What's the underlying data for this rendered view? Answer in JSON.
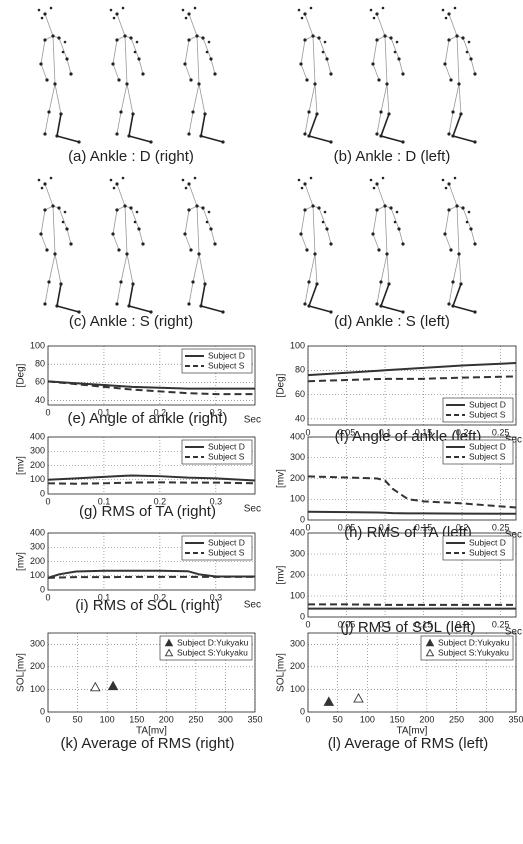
{
  "panels": [
    {
      "caption": "(a) Ankle : D (right)"
    },
    {
      "caption": "(b) Ankle : D (left)"
    },
    {
      "caption": "(c) Ankle : S (right)"
    },
    {
      "caption": "(d) Ankle : S (left)"
    }
  ],
  "chart_data": [
    {
      "type": "line",
      "title": "(e) Angle of ankle (right)",
      "xlabel": "Sec",
      "ylabel": "[Deg]",
      "xlim": [
        0,
        0.37
      ],
      "xticks": [
        0,
        0.1,
        0.2,
        0.3
      ],
      "ylim": [
        35,
        100
      ],
      "yticks": [
        40,
        60,
        80,
        100
      ],
      "grid": true,
      "legend": "upper right",
      "x": [
        0,
        0.05,
        0.1,
        0.15,
        0.2,
        0.25,
        0.3,
        0.37
      ],
      "series": [
        {
          "name": "Subject D",
          "color": "#333333",
          "dash": "solid",
          "values": [
            61,
            59,
            57,
            55,
            54,
            53,
            53,
            53
          ]
        },
        {
          "name": "Subject S",
          "color": "#333333",
          "dash": "dashed",
          "values": [
            61,
            58,
            55,
            52,
            50,
            48,
            47,
            47
          ]
        }
      ]
    },
    {
      "type": "line",
      "title": "(f) Angle of ankle (left)",
      "xlabel": "Sec",
      "ylabel": "[Deg]",
      "xlim": [
        0,
        0.27
      ],
      "xticks": [
        0,
        0.05,
        0.1,
        0.15,
        0.2,
        0.25
      ],
      "ylim": [
        35,
        100
      ],
      "yticks": [
        40,
        60,
        80,
        100
      ],
      "grid": true,
      "legend": "lower right",
      "x": [
        0,
        0.05,
        0.1,
        0.15,
        0.2,
        0.27
      ],
      "series": [
        {
          "name": "Subject D",
          "color": "#333333",
          "dash": "solid",
          "values": [
            76,
            78,
            80,
            82,
            84,
            86
          ]
        },
        {
          "name": "Subject S",
          "color": "#333333",
          "dash": "dashed",
          "values": [
            71,
            72,
            73,
            73,
            74,
            75
          ]
        }
      ]
    },
    {
      "type": "line",
      "title": "(g) RMS of TA (right)",
      "xlabel": "Sec",
      "ylabel": "[mv]",
      "xlim": [
        0,
        0.37
      ],
      "xticks": [
        0,
        0.1,
        0.2,
        0.3
      ],
      "ylim": [
        0,
        400
      ],
      "yticks": [
        0,
        100,
        200,
        300,
        400
      ],
      "grid": true,
      "legend": "upper right",
      "x": [
        0,
        0.05,
        0.1,
        0.15,
        0.2,
        0.25,
        0.3,
        0.37
      ],
      "series": [
        {
          "name": "Subject D",
          "color": "#333333",
          "dash": "solid",
          "values": [
            100,
            110,
            120,
            130,
            125,
            115,
            110,
            95
          ]
        },
        {
          "name": "Subject S",
          "color": "#333333",
          "dash": "dashed",
          "values": [
            75,
            72,
            75,
            80,
            82,
            80,
            80,
            75
          ]
        }
      ]
    },
    {
      "type": "line",
      "title": "(h) RMS of TA (left)",
      "xlabel": "Sec",
      "ylabel": "[mv]",
      "xlim": [
        0,
        0.27
      ],
      "xticks": [
        0,
        0.05,
        0.1,
        0.15,
        0.2,
        0.25
      ],
      "ylim": [
        0,
        400
      ],
      "yticks": [
        0,
        100,
        200,
        300,
        400
      ],
      "grid": true,
      "legend": "upper right",
      "x": [
        0,
        0.05,
        0.09,
        0.1,
        0.11,
        0.13,
        0.15,
        0.2,
        0.27
      ],
      "series": [
        {
          "name": "Subject D",
          "color": "#333333",
          "dash": "solid",
          "values": [
            40,
            38,
            36,
            35,
            33,
            32,
            32,
            31,
            30
          ]
        },
        {
          "name": "Subject S",
          "color": "#333333",
          "dash": "dashed",
          "values": [
            210,
            205,
            200,
            190,
            150,
            100,
            90,
            80,
            60
          ]
        }
      ]
    },
    {
      "type": "line",
      "title": "(i) RMS of SOL (right)",
      "xlabel": "Sec",
      "ylabel": "[mv]",
      "xlim": [
        0,
        0.37
      ],
      "xticks": [
        0,
        0.1,
        0.2,
        0.3
      ],
      "ylim": [
        0,
        400
      ],
      "yticks": [
        0,
        100,
        200,
        300,
        400
      ],
      "grid": true,
      "legend": "upper right",
      "x": [
        0,
        0.02,
        0.05,
        0.1,
        0.15,
        0.2,
        0.25,
        0.27,
        0.3,
        0.37
      ],
      "series": [
        {
          "name": "Subject D",
          "color": "#333333",
          "dash": "solid",
          "values": [
            85,
            110,
            130,
            135,
            135,
            135,
            132,
            110,
            95,
            95
          ]
        },
        {
          "name": "Subject S",
          "color": "#333333",
          "dash": "dashed",
          "values": [
            85,
            88,
            90,
            90,
            92,
            92,
            92,
            92,
            92,
            92
          ]
        }
      ]
    },
    {
      "type": "line",
      "title": "(j) RMS of SOL (left)",
      "xlabel": "Sec",
      "ylabel": "[mv]",
      "xlim": [
        0,
        0.27
      ],
      "xticks": [
        0,
        0.05,
        0.1,
        0.15,
        0.2,
        0.25
      ],
      "ylim": [
        0,
        400
      ],
      "yticks": [
        0,
        100,
        200,
        300,
        400
      ],
      "grid": true,
      "legend": "upper right",
      "x": [
        0,
        0.05,
        0.1,
        0.15,
        0.2,
        0.27
      ],
      "series": [
        {
          "name": "Subject D",
          "color": "#333333",
          "dash": "solid",
          "values": [
            40,
            40,
            40,
            40,
            40,
            40
          ]
        },
        {
          "name": "Subject S",
          "color": "#333333",
          "dash": "dashed",
          "values": [
            60,
            60,
            58,
            58,
            58,
            58
          ]
        }
      ]
    },
    {
      "type": "scatter",
      "title": "(k) Average of RMS (right)",
      "xlabel": "TA[mv]",
      "ylabel": "SOL[mv]",
      "xlim": [
        0,
        350
      ],
      "xticks": [
        0,
        50,
        100,
        150,
        200,
        250,
        300,
        350
      ],
      "ylim": [
        0,
        350
      ],
      "yticks": [
        0,
        100,
        200,
        300
      ],
      "grid": true,
      "legend": "upper right",
      "series": [
        {
          "name": "Subject D:Yukyaku",
          "color": "#333333",
          "marker": "triangle",
          "filled": true,
          "x": [
            110
          ],
          "values": [
            115
          ]
        },
        {
          "name": "Subject S:Yukyaku",
          "color": "#333333",
          "marker": "triangle",
          "filled": false,
          "x": [
            80
          ],
          "values": [
            110
          ]
        }
      ]
    },
    {
      "type": "scatter",
      "title": "(l) Average of RMS (left)",
      "xlabel": "TA[mv]",
      "ylabel": "SOL[mv]",
      "xlim": [
        0,
        350
      ],
      "xticks": [
        0,
        50,
        100,
        150,
        200,
        250,
        300,
        350
      ],
      "ylim": [
        0,
        350
      ],
      "yticks": [
        0,
        100,
        200,
        300
      ],
      "grid": true,
      "legend": "upper right",
      "series": [
        {
          "name": "Subject D:Yukyaku",
          "color": "#333333",
          "marker": "triangle",
          "filled": true,
          "x": [
            35
          ],
          "values": [
            45
          ]
        },
        {
          "name": "Subject S:Yukyaku",
          "color": "#333333",
          "marker": "triangle",
          "filled": false,
          "x": [
            85
          ],
          "values": [
            60
          ]
        }
      ]
    }
  ]
}
